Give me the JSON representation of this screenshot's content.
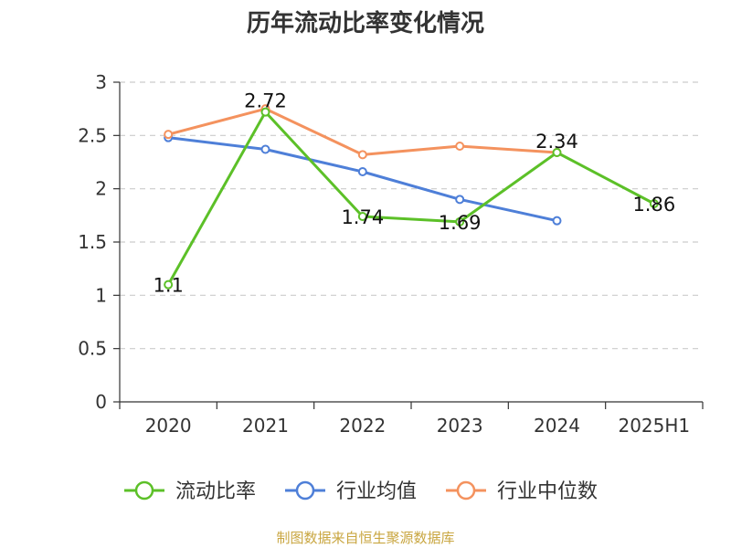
{
  "chart_data": {
    "type": "line",
    "title": "历年流动比率变化情况",
    "categories": [
      "2020",
      "2021",
      "2022",
      "2023",
      "2024",
      "2025H1"
    ],
    "ylim": [
      0,
      3
    ],
    "yticks": [
      "0",
      "0.5",
      "1",
      "1.5",
      "2",
      "2.5",
      "3"
    ],
    "grid": true,
    "legend_position": "bottom",
    "series": [
      {
        "name": "流动比率",
        "color": "#5cc028",
        "values": [
          1.1,
          2.72,
          1.74,
          1.69,
          2.34,
          1.86
        ],
        "labels": [
          "1.1",
          "2.72",
          "1.74",
          "1.69",
          "2.34",
          "1.86"
        ]
      },
      {
        "name": "行业均值",
        "color": "#4e7fd8",
        "values": [
          2.48,
          2.37,
          2.16,
          1.9,
          1.7,
          null
        ]
      },
      {
        "name": "行业中位数",
        "color": "#f4925e",
        "values": [
          2.51,
          2.75,
          2.32,
          2.4,
          2.34,
          null
        ]
      }
    ],
    "source": "制图数据来自恒生聚源数据库"
  }
}
